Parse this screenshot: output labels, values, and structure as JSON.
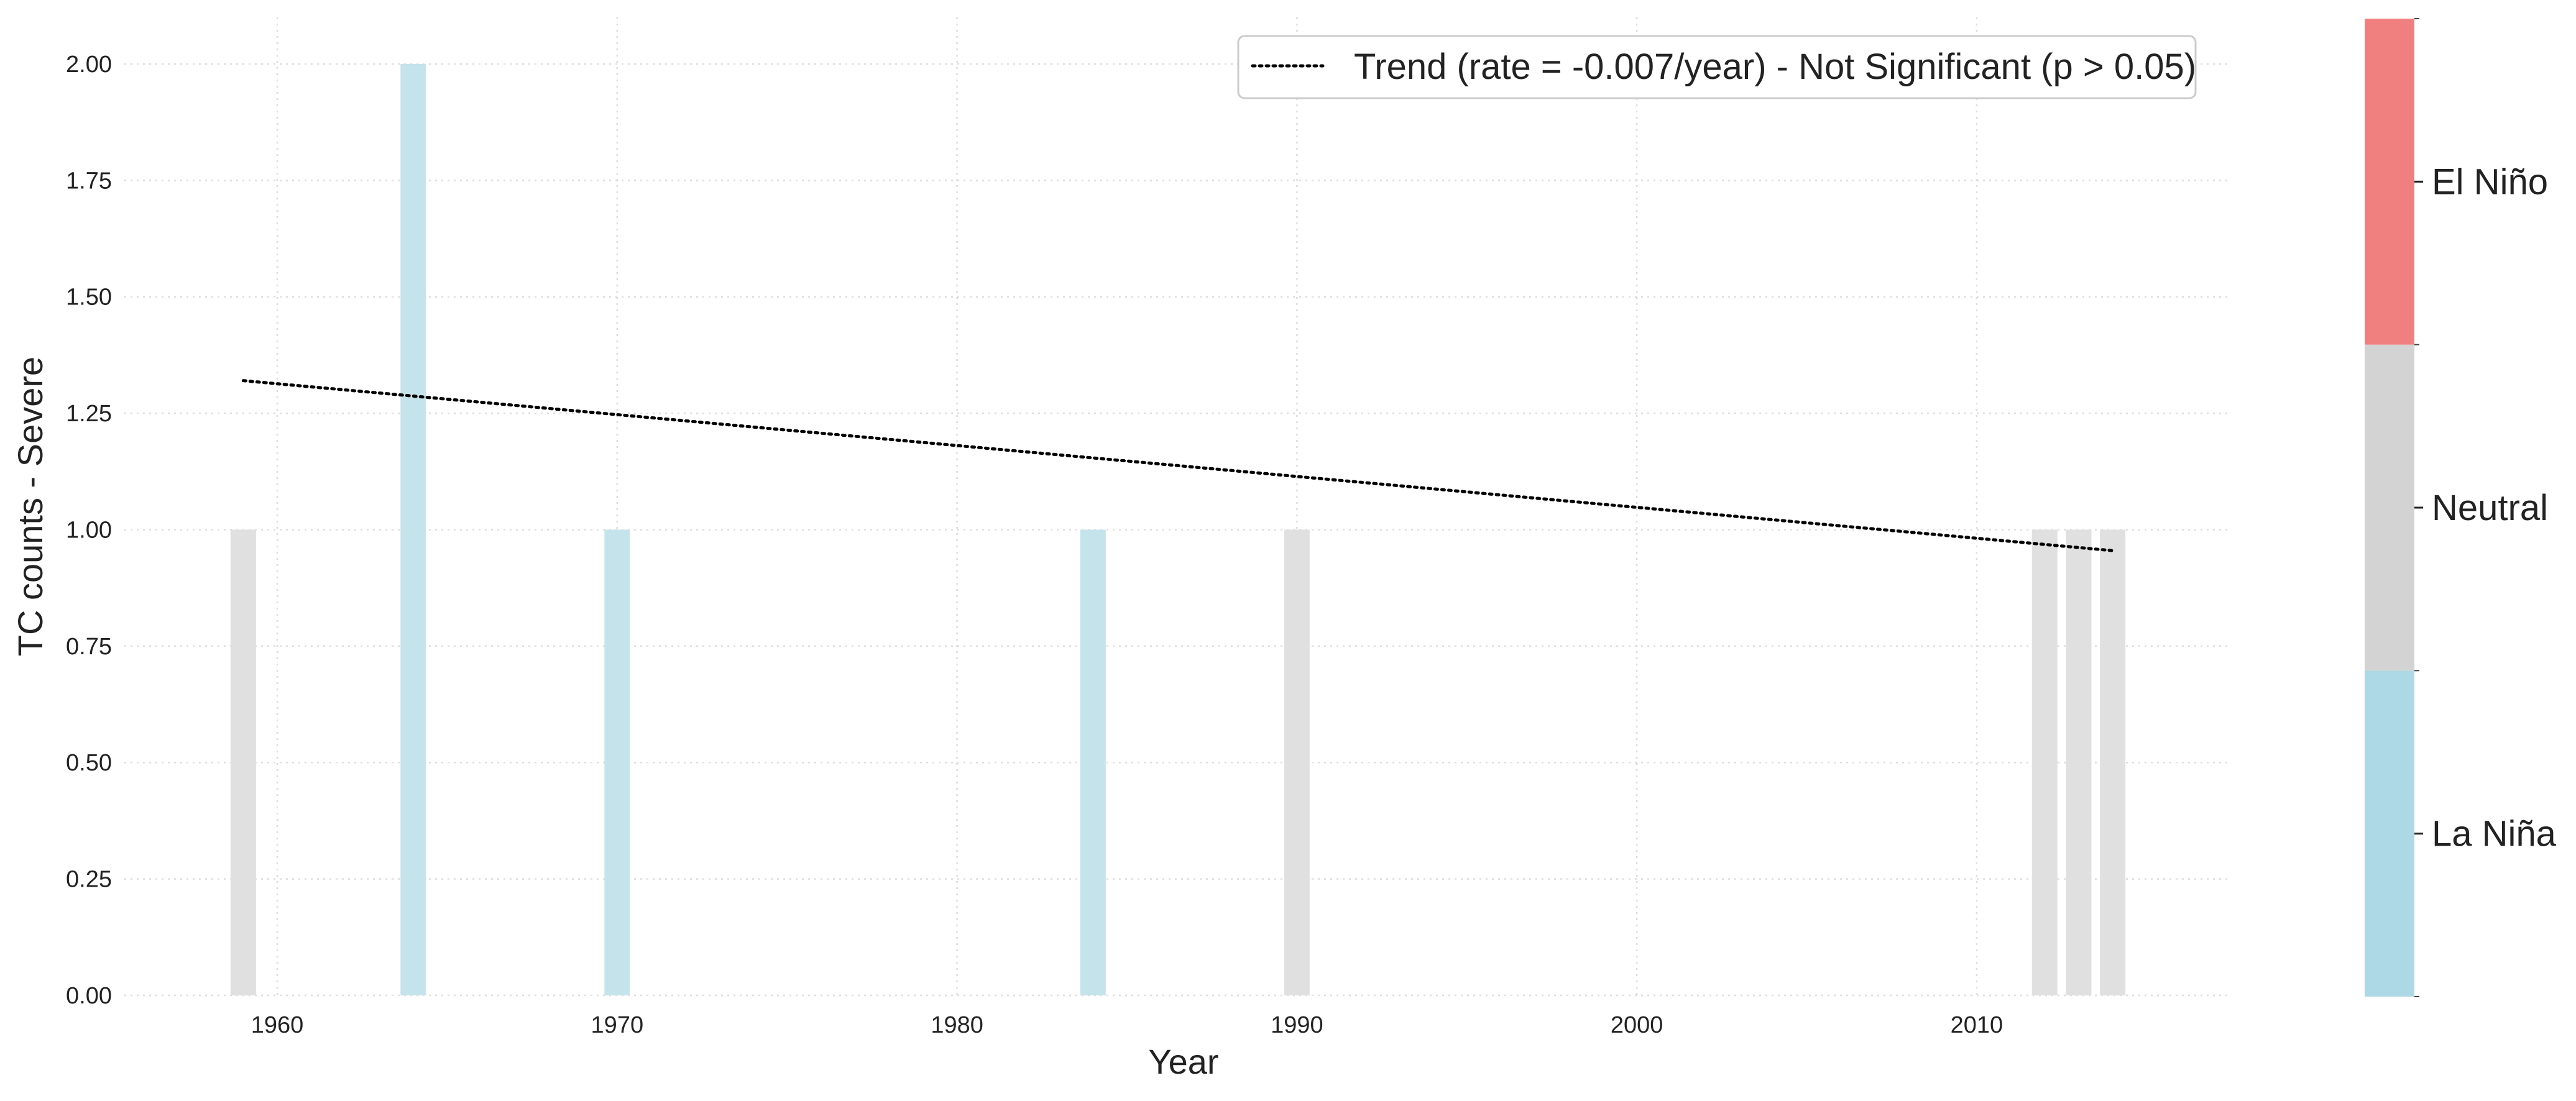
{
  "chart_data": {
    "type": "bar",
    "xlabel": "Year",
    "ylabel": "TC counts - Severe",
    "xlim": [
      1955.5,
      2017.5
    ],
    "ylim": [
      0,
      2.1
    ],
    "x_ticks": [
      1960,
      1970,
      1980,
      1990,
      2000,
      2010
    ],
    "y_ticks": [
      0.0,
      0.25,
      0.5,
      0.75,
      1.0,
      1.25,
      1.5,
      1.75,
      2.0
    ],
    "y_tick_labels": [
      "0.00",
      "0.25",
      "0.50",
      "0.75",
      "1.00",
      "1.25",
      "1.50",
      "1.75",
      "2.00"
    ],
    "grid": true,
    "bars": [
      {
        "year": 1959,
        "count": 1,
        "enso": "Neutral"
      },
      {
        "year": 1964,
        "count": 2,
        "enso": "La Niña"
      },
      {
        "year": 1970,
        "count": 1,
        "enso": "La Niña"
      },
      {
        "year": 1984,
        "count": 1,
        "enso": "La Niña"
      },
      {
        "year": 1990,
        "count": 1,
        "enso": "Neutral"
      },
      {
        "year": 2012,
        "count": 1,
        "enso": "Neutral"
      },
      {
        "year": 2013,
        "count": 1,
        "enso": "Neutral"
      },
      {
        "year": 2014,
        "count": 1,
        "enso": "Neutral"
      }
    ],
    "trend": {
      "label": "Trend (rate = -0.007/year) - Not Significant (p > 0.05)",
      "x": [
        1959,
        2014
      ],
      "y": [
        1.32,
        0.955
      ],
      "style": "dotted",
      "color": "#000000"
    },
    "legend_position": "top-right",
    "bar_colors": {
      "La Niña": "#c5e3ea",
      "Neutral": "#e0e0e0",
      "El Niño": "#f08080"
    },
    "colorbar": {
      "categories": [
        "La Niña",
        "Neutral",
        "El Niño"
      ],
      "colors": [
        "#add8e6",
        "#d3d3d3",
        "#f08080"
      ]
    }
  }
}
